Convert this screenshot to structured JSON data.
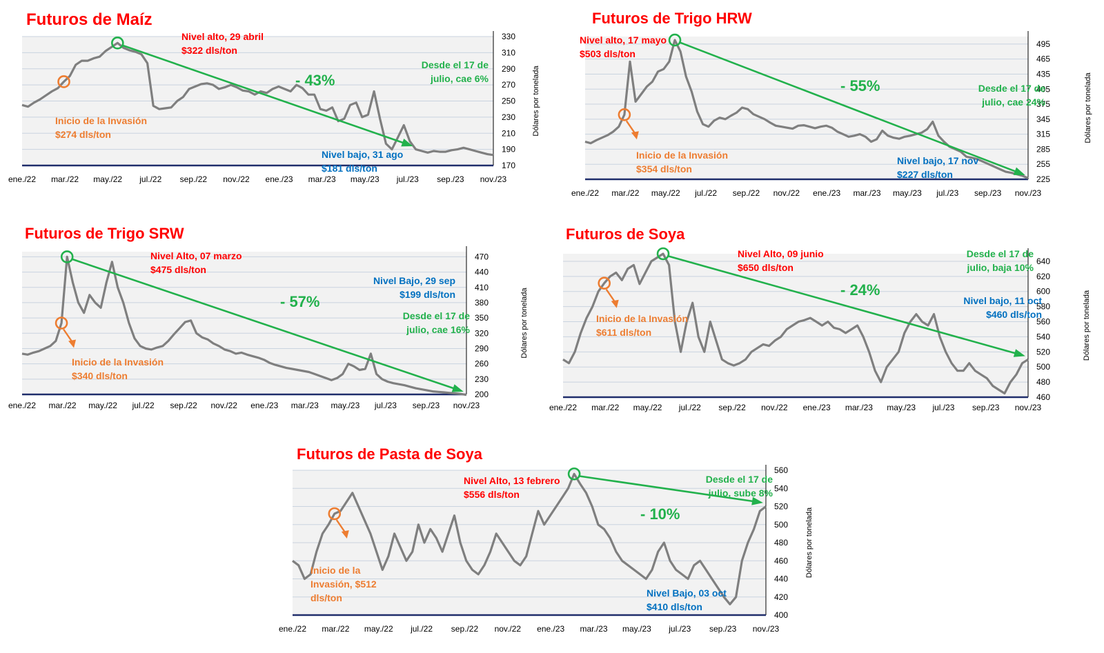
{
  "colors": {
    "title": "#ff0000",
    "high": "#ff0000",
    "invasion": "#ed7d31",
    "low": "#0070c0",
    "trend": "#22b14c",
    "line": "#7f7f7f",
    "plot_bg": "#f2f2f2",
    "grid": "#c9d3df",
    "axis": "#1f2d6b"
  },
  "icons": {
    "marker": "circle-marker-icon",
    "arrow": "arrow-icon"
  },
  "chart_data": [
    {
      "id": "maiz",
      "type": "line",
      "title": "Futuros de Maíz",
      "ylabel": "Dólares por tonelada",
      "yticks": [
        "330",
        "310",
        "290",
        "270",
        "250",
        "230",
        "210",
        "190",
        "170"
      ],
      "ylim": [
        170,
        330
      ],
      "xticks": [
        "ene./22",
        "mar./22",
        "may./22",
        "jul./22",
        "sep./22",
        "nov./22",
        "ene./23",
        "mar./23",
        "may./23",
        "jul./23",
        "sep./23",
        "nov./23"
      ],
      "grid": true,
      "series": [
        {
          "values": [
            245,
            243,
            248,
            252,
            257,
            262,
            266,
            274,
            281,
            295,
            300,
            300,
            303,
            305,
            312,
            317,
            322,
            316,
            313,
            311,
            308,
            297,
            244,
            240,
            241,
            242,
            250,
            255,
            265,
            268,
            271,
            272,
            270,
            265,
            267,
            270,
            267,
            263,
            262,
            258,
            262,
            260,
            265,
            268,
            265,
            262,
            270,
            266,
            258,
            258,
            240,
            238,
            242,
            225,
            228,
            245,
            248,
            230,
            233,
            262,
            228,
            197,
            190,
            205,
            220,
            200,
            190,
            188,
            186,
            188,
            187,
            187,
            189,
            190,
            192,
            190,
            188,
            186,
            184,
            183
          ]
        }
      ],
      "annotations": {
        "high": [
          "Nivel alto, 29 abril",
          "$322 dls/ton"
        ],
        "invasion": [
          "Inicio de la Invasión",
          "$274 dls/ton"
        ],
        "low": [
          "Nivel bajo, 31 ago",
          "$181 dls/ton"
        ],
        "since": [
          "Desde el 17 de",
          "julio, cae 6%"
        ],
        "change": "- 43%"
      }
    },
    {
      "id": "hrw",
      "type": "line",
      "title": "Futuros de Trigo HRW",
      "ylabel": "Dólares por tonelada",
      "yticks": [
        "495",
        "465",
        "435",
        "405",
        "375",
        "345",
        "315",
        "285",
        "255",
        "225"
      ],
      "ylim": [
        225,
        510
      ],
      "xticks": [
        "ene./22",
        "mar./22",
        "may./22",
        "jul./22",
        "sep./22",
        "nov./22",
        "ene./23",
        "mar./23",
        "may./23",
        "jul./23",
        "sep./23",
        "nov./23"
      ],
      "grid": true,
      "series": [
        {
          "values": [
            300,
            297,
            303,
            308,
            313,
            320,
            330,
            354,
            460,
            380,
            395,
            410,
            420,
            440,
            445,
            460,
            503,
            480,
            430,
            400,
            360,
            335,
            330,
            342,
            348,
            345,
            352,
            358,
            368,
            365,
            355,
            350,
            345,
            338,
            332,
            330,
            328,
            326,
            332,
            333,
            330,
            327,
            330,
            332,
            328,
            320,
            315,
            310,
            312,
            315,
            310,
            300,
            305,
            322,
            312,
            308,
            306,
            310,
            312,
            315,
            318,
            325,
            340,
            312,
            300,
            290,
            285,
            280,
            270,
            268,
            265,
            260,
            255,
            250,
            245,
            240,
            238,
            235,
            232,
            227
          ]
        }
      ],
      "annotations": {
        "high": [
          "Nivel alto, 17 mayo",
          "$503 dls/ton"
        ],
        "invasion": [
          "Inicio de la Invasión",
          "$354 dls/ton"
        ],
        "low": [
          "Nivel bajo, 17 nov",
          "$227 dls/ton"
        ],
        "since": [
          "Desde el 17 de",
          "julio, cae 24%"
        ],
        "change": "- 55%"
      }
    },
    {
      "id": "srw",
      "type": "line",
      "title": "Futuros de Trigo SRW",
      "ylabel": "Dólares por tonelada",
      "yticks": [
        "470",
        "440",
        "410",
        "380",
        "350",
        "320",
        "290",
        "260",
        "230",
        "200"
      ],
      "ylim": [
        200,
        480
      ],
      "xticks": [
        "ene./22",
        "mar./22",
        "may./22",
        "jul./22",
        "sep./22",
        "nov./22",
        "ene./23",
        "mar./23",
        "may./23",
        "jul./23",
        "sep./23",
        "nov./23"
      ],
      "grid": true,
      "series": [
        {
          "values": [
            280,
            278,
            282,
            285,
            290,
            295,
            305,
            340,
            470,
            420,
            380,
            360,
            395,
            380,
            370,
            420,
            460,
            410,
            380,
            340,
            310,
            295,
            290,
            288,
            292,
            295,
            305,
            318,
            330,
            342,
            345,
            320,
            312,
            308,
            300,
            295,
            288,
            285,
            280,
            282,
            278,
            275,
            272,
            268,
            262,
            258,
            255,
            252,
            250,
            248,
            246,
            244,
            240,
            236,
            232,
            228,
            232,
            240,
            260,
            255,
            248,
            250,
            280,
            240,
            230,
            225,
            222,
            220,
            218,
            215,
            212,
            210,
            208,
            206,
            205,
            204,
            203,
            202,
            201,
            199
          ]
        }
      ],
      "annotations": {
        "high": [
          "Nivel Alto, 07 marzo",
          "$475 dls/ton"
        ],
        "invasion": [
          "Inicio de la Invasión",
          "$340 dls/ton"
        ],
        "low": [
          "Nivel Bajo, 29 sep",
          "$199 dls/ton"
        ],
        "since": [
          "Desde el 17 de",
          "julio, cae 16%"
        ],
        "change": "- 57%"
      }
    },
    {
      "id": "soya",
      "type": "line",
      "title": "Futuros de Soya",
      "ylabel": "Dólares por tonelada",
      "yticks": [
        "640",
        "620",
        "600",
        "580",
        "560",
        "540",
        "520",
        "500",
        "480",
        "460"
      ],
      "ylim": [
        460,
        650
      ],
      "xticks": [
        "ene./22",
        "mar./22",
        "may./22",
        "jul./22",
        "sep./22",
        "nov./22",
        "ene./23",
        "mar./23",
        "may./23",
        "jul./23",
        "sep./23",
        "nov./23"
      ],
      "grid": true,
      "series": [
        {
          "values": [
            510,
            505,
            520,
            545,
            565,
            580,
            600,
            611,
            620,
            625,
            615,
            630,
            635,
            610,
            625,
            640,
            645,
            650,
            635,
            560,
            520,
            560,
            585,
            540,
            520,
            560,
            535,
            510,
            505,
            502,
            505,
            510,
            520,
            525,
            530,
            528,
            535,
            540,
            550,
            555,
            560,
            562,
            565,
            560,
            555,
            560,
            552,
            550,
            545,
            550,
            555,
            540,
            520,
            495,
            480,
            500,
            510,
            520,
            545,
            560,
            570,
            560,
            555,
            570,
            540,
            520,
            505,
            495,
            495,
            505,
            495,
            490,
            485,
            475,
            470,
            465,
            480,
            490,
            505,
            510
          ]
        }
      ],
      "annotations": {
        "high": [
          "Nivel Alto, 09 junio",
          "$650 dls/ton"
        ],
        "invasion": [
          "Inicio de la Invasión",
          "$611 dls/ton"
        ],
        "low": [
          "Nivel bajo, 11 oct",
          "$460 dls/ton"
        ],
        "since": [
          "Desde el 17 de",
          "julio, baja 10%"
        ],
        "change": "- 24%"
      }
    },
    {
      "id": "pasta",
      "type": "line",
      "title": "Futuros de Pasta de Soya",
      "ylabel": "Dólares por tonelada",
      "yticks": [
        "560",
        "540",
        "520",
        "500",
        "480",
        "460",
        "440",
        "420",
        "400"
      ],
      "ylim": [
        400,
        560
      ],
      "xticks": [
        "ene./22",
        "mar./22",
        "may./22",
        "jul./22",
        "sep./22",
        "nov./22",
        "ene./23",
        "mar./23",
        "may./23",
        "jul./23",
        "sep./23",
        "nov./23"
      ],
      "grid": true,
      "series": [
        {
          "values": [
            460,
            455,
            440,
            445,
            470,
            490,
            500,
            512,
            515,
            525,
            535,
            520,
            505,
            490,
            470,
            450,
            465,
            490,
            475,
            460,
            470,
            500,
            480,
            495,
            485,
            470,
            490,
            510,
            480,
            460,
            450,
            445,
            455,
            470,
            490,
            480,
            470,
            460,
            455,
            465,
            490,
            515,
            500,
            510,
            520,
            530,
            540,
            556,
            545,
            535,
            520,
            500,
            495,
            485,
            470,
            460,
            455,
            450,
            445,
            440,
            450,
            470,
            480,
            460,
            450,
            445,
            440,
            455,
            460,
            450,
            440,
            430,
            420,
            412,
            420,
            460,
            480,
            495,
            515,
            520
          ]
        }
      ],
      "annotations": {
        "high": [
          "Nivel Alto, 13 febrero",
          "$556 dls/ton"
        ],
        "invasion": [
          "Inicio de la",
          "Invasión, $512",
          "dls/ton"
        ],
        "low": [
          "Nivel Bajo, 03 oct",
          "$410 dls/ton"
        ],
        "since": [
          "Desde el 17 de",
          "julio, sube 8%"
        ],
        "change": "- 10%"
      }
    }
  ]
}
